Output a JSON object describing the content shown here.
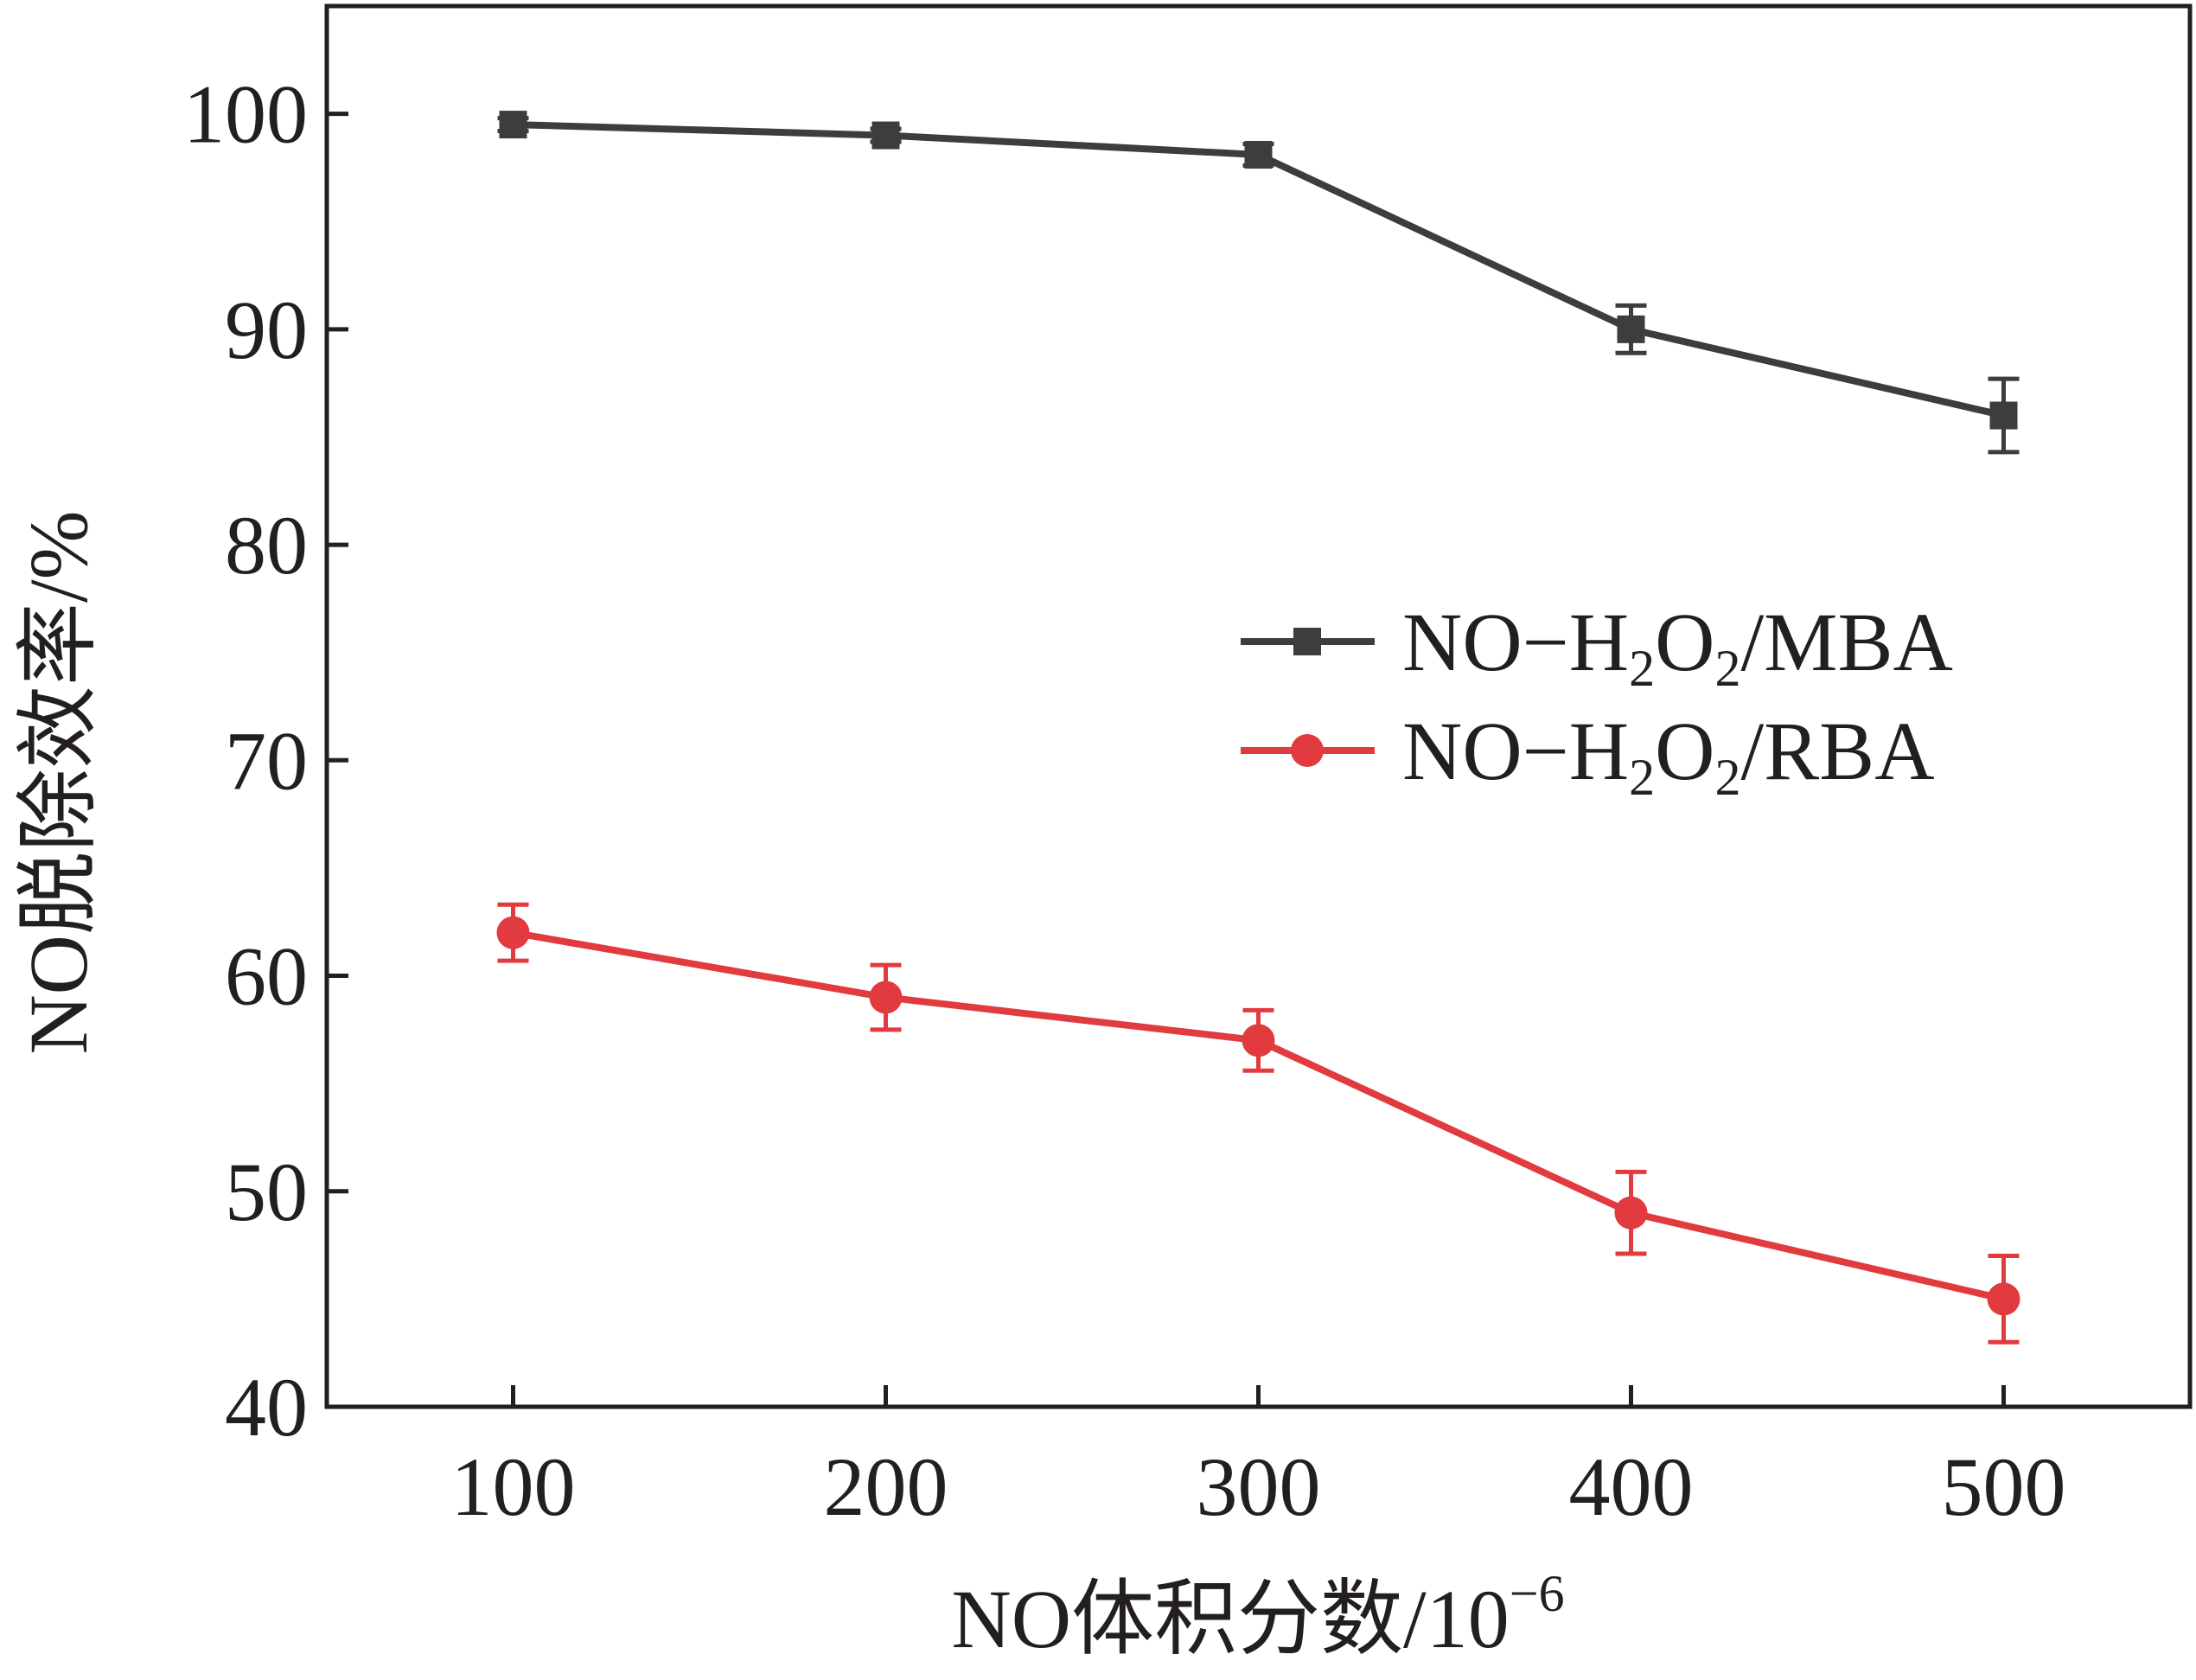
{
  "chart_data": {
    "type": "line",
    "xlabel": "NO体积分数/10",
    "xlabel_sup": "−6",
    "ylabel": "NO脱除效率/%",
    "x": [
      100,
      200,
      300,
      400,
      500
    ],
    "xlim": [
      50,
      550
    ],
    "ylim": [
      40,
      105
    ],
    "x_ticks": [
      "100",
      "200",
      "300",
      "400",
      "500"
    ],
    "y_ticks": [
      "40",
      "50",
      "60",
      "70",
      "80",
      "90",
      "100"
    ],
    "legend_position": "center-right",
    "series": [
      {
        "name_main": "NO−H",
        "name_sub1": "2",
        "name_mid": "O",
        "name_sub2": "2",
        "name_tail": "/MBA",
        "marker": "square",
        "color": "#3d3d3d",
        "values": [
          99.5,
          99.0,
          98.1,
          90.0,
          86.0
        ],
        "errors": [
          0.3,
          0.3,
          0.5,
          1.1,
          1.7
        ]
      },
      {
        "name_main": "NO−H",
        "name_sub1": "2",
        "name_mid": "O",
        "name_sub2": "2",
        "name_tail": "/RBA",
        "marker": "circle",
        "color": "#e23b3f",
        "values": [
          62.0,
          59.0,
          57.0,
          49.0,
          45.0
        ],
        "errors": [
          1.3,
          1.5,
          1.4,
          1.9,
          2.0
        ]
      }
    ]
  }
}
